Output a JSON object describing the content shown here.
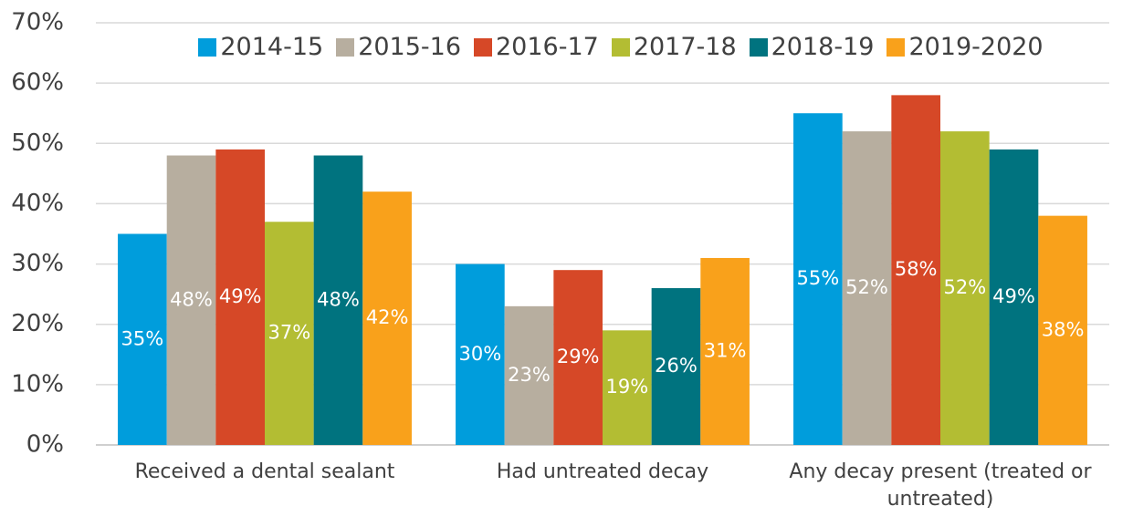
{
  "chart_data": {
    "type": "bar",
    "categories": [
      "Received a dental sealant",
      "Had untreated decay",
      "Any decay present (treated or untreated)"
    ],
    "series": [
      {
        "name": "2014-15",
        "color": "#009ddc",
        "values": [
          35,
          30,
          55
        ],
        "value_labels": [
          "35%",
          "30%",
          "55%"
        ]
      },
      {
        "name": "2015-16",
        "color": "#b7ae9f",
        "values": [
          48,
          23,
          52
        ],
        "value_labels": [
          "48%",
          "23%",
          "52%"
        ]
      },
      {
        "name": "2016-17",
        "color": "#d64827",
        "values": [
          49,
          29,
          58
        ],
        "value_labels": [
          "49%",
          "29%",
          "58%"
        ]
      },
      {
        "name": "2017-18",
        "color": "#b3bd33",
        "values": [
          37,
          19,
          52
        ],
        "value_labels": [
          "37%",
          "19%",
          "52%"
        ]
      },
      {
        "name": "2018-19",
        "color": "#00737f",
        "values": [
          48,
          26,
          49
        ],
        "value_labels": [
          "48%",
          "26%",
          "49%"
        ]
      },
      {
        "name": "2019-2020",
        "color": "#f9a11b",
        "values": [
          42,
          31,
          38
        ],
        "value_labels": [
          "42%",
          "31%",
          "38%"
        ]
      }
    ],
    "ylim": [
      0,
      70
    ],
    "yticks": [
      {
        "value": 0,
        "label": "0%"
      },
      {
        "value": 10,
        "label": "10%"
      },
      {
        "value": 20,
        "label": "20%"
      },
      {
        "value": 30,
        "label": "30%"
      },
      {
        "value": 40,
        "label": "40%"
      },
      {
        "value": 50,
        "label": "50%"
      },
      {
        "value": 60,
        "label": "60%"
      },
      {
        "value": 70,
        "label": "70%"
      }
    ],
    "grid": true,
    "legend": "top"
  }
}
